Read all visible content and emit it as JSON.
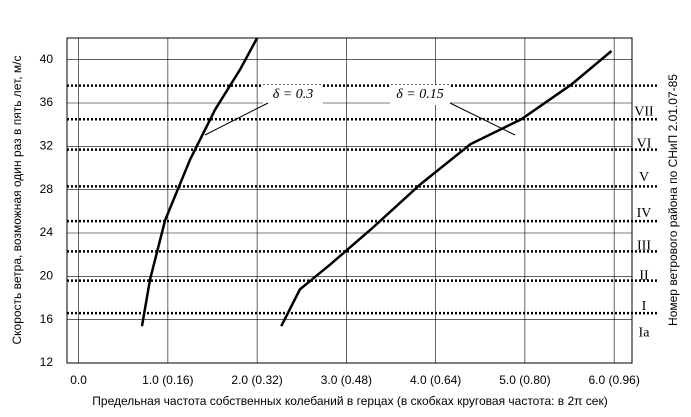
{
  "chart_data": {
    "type": "line",
    "y_label": "Скорость ветра, возможная один раз в пять лет, м/с",
    "x_label": "Предельная частота собственных колебаний в герцах (в скобках круговая частота: в 2π сек)",
    "y2_label": "Номер ветрового района по СНиП 2.01.07-85",
    "series": [
      {
        "name": "δ = 0.3",
        "color": "#000000",
        "x": [
          0.71,
          0.8,
          0.97,
          1.25,
          1.53,
          1.81,
          2.0
        ],
        "values": [
          15.4,
          19.7,
          25.2,
          30.8,
          35.4,
          39.1,
          42
        ]
      },
      {
        "name": "δ = 0.15",
        "color": "#000000",
        "x": [
          2.27,
          2.48,
          2.82,
          3.27,
          3.83,
          4.39,
          4.96,
          5.52,
          5.97
        ],
        "values": [
          15.4,
          18.8,
          21.1,
          24.3,
          28.5,
          32.2,
          34.5,
          37.7,
          40.8
        ]
      }
    ],
    "zone_lines": [
      37.6,
      34.5,
      31.7,
      28.3,
      25.1,
      22.3,
      19.6,
      16.6
    ],
    "zone_labels": [
      "VII",
      "VI",
      "V",
      "IV",
      "III",
      "II",
      "I",
      "Ia"
    ],
    "xlim": [
      -0.13,
      6.2
    ],
    "ylim": [
      12,
      42
    ],
    "xticks": [
      {
        "value": 0,
        "label": "0.0"
      },
      {
        "value": 1,
        "label": "1.0 (0.16)"
      },
      {
        "value": 2,
        "label": "2.0 (0.32)"
      },
      {
        "value": 3,
        "label": "3.0 (0.48)"
      },
      {
        "value": 4,
        "label": "4.0 (0.64)"
      },
      {
        "value": 5,
        "label": "5.0 (0.80)"
      },
      {
        "value": 6,
        "label": "6.0 (0.96)"
      }
    ],
    "yticks": [
      12,
      16,
      20,
      24,
      28,
      32,
      36,
      40
    ],
    "grid": true
  }
}
